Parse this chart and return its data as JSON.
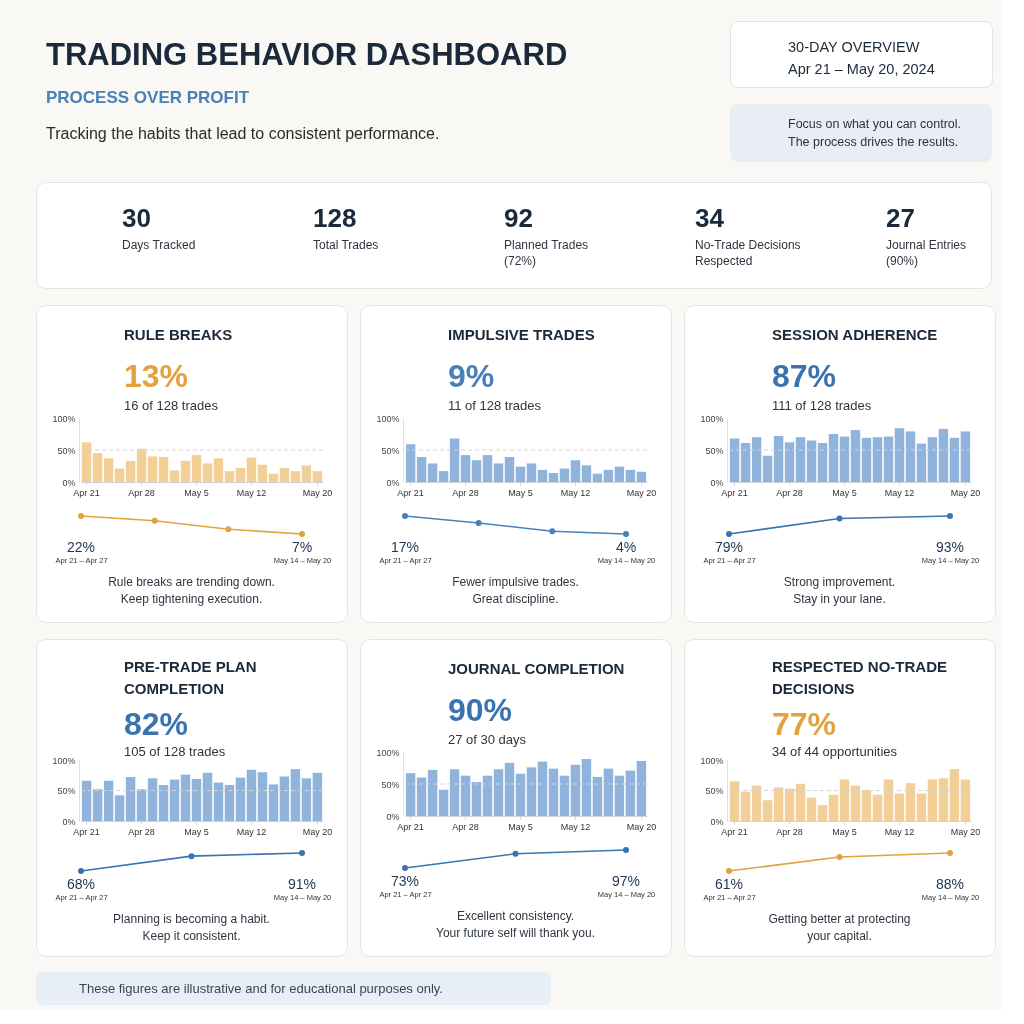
{
  "chart_data": [
    {
      "type": "other",
      "title": "TRADING BEHAVIOR DASHBOARD",
      "subtitle": "PROCESS OVER PROFIT",
      "annotations": [
        "Tracking the habits that lead to consistent performance."
      ]
    },
    {
      "type": "other",
      "title": "30-DAY OVERVIEW",
      "subtitle": "Apr 21 – May 20, 2024"
    },
    {
      "type": "other",
      "annotations": [
        "Focus on what you can control.",
        "The process drives the results."
      ]
    },
    {
      "type": "other",
      "categories": [
        "Days Tracked",
        "Total Trades",
        "Planned Trades (72%)",
        "No-Trade Decisions Respected",
        "Journal Entries (90%)"
      ],
      "values": [
        30,
        128,
        92,
        34,
        27
      ],
      "data_labels": true
    },
    {
      "type": "bar",
      "title": "RULE BREAKS",
      "subtitle": "13%",
      "annotations": [
        "16 of 128 trades"
      ],
      "categories": [
        "Apr 21",
        null,
        null,
        null,
        null,
        "Apr 28",
        null,
        null,
        null,
        null,
        "May 5",
        null,
        null,
        null,
        null,
        "May 12",
        null,
        null,
        null,
        null,
        null,
        "May 20"
      ],
      "values": [
        62,
        45,
        37,
        21,
        33,
        52,
        40,
        39,
        18,
        33,
        42,
        29,
        37,
        17,
        22,
        38,
        27,
        13,
        22,
        17,
        26,
        17
      ],
      "color": "#f2cf96",
      "ylim": [
        0,
        100
      ],
      "yticks": [
        {
          "value": 0,
          "label": "0%"
        },
        {
          "value": 50,
          "label": "50%"
        },
        {
          "value": 100,
          "label": "100%"
        }
      ],
      "ref_lines": [
        {
          "axis": "y",
          "value": 50,
          "line_style": "dashed",
          "color": "#d4d4d4"
        }
      ]
    },
    {
      "type": "line",
      "categories": [
        "Apr 21 – Apr 27",
        null,
        null,
        "May 14 – May 20"
      ],
      "values": [
        22,
        18,
        11,
        7
      ],
      "value_labels": [
        "22%",
        null,
        null,
        "7%"
      ],
      "color": "#e3a23f",
      "marker": "circle",
      "line_style": "solid",
      "tick_labels": "x",
      "annotations": [
        "Rule breaks are trending down.",
        "Keep tightening execution."
      ]
    },
    {
      "type": "bar",
      "title": "IMPULSIVE TRADES",
      "subtitle": "9%",
      "annotations": [
        "11 of 128 trades"
      ],
      "categories": [
        "Apr 21",
        null,
        null,
        null,
        null,
        "Apr 28",
        null,
        null,
        null,
        null,
        "May 5",
        null,
        null,
        null,
        null,
        "May 12",
        null,
        null,
        null,
        null,
        null,
        "May 20"
      ],
      "values": [
        59,
        39,
        29,
        17,
        68,
        42,
        34,
        42,
        29,
        39,
        24,
        29,
        19,
        14,
        21,
        34,
        26,
        13,
        19,
        24,
        19,
        16
      ],
      "color": "#8fb3da",
      "ylim": [
        0,
        100
      ],
      "yticks": [
        {
          "value": 0,
          "label": "0%"
        },
        {
          "value": 50,
          "label": "50%"
        },
        {
          "value": 100,
          "label": "100%"
        }
      ],
      "ref_lines": [
        {
          "axis": "y",
          "value": 50,
          "line_style": "dashed",
          "color": "#d4d4d4"
        }
      ]
    },
    {
      "type": "line",
      "categories": [
        "Apr 21 – Apr 27",
        null,
        null,
        "May 14 – May 20"
      ],
      "values": [
        17,
        12,
        6,
        4
      ],
      "value_labels": [
        "17%",
        null,
        null,
        "4%"
      ],
      "color": "#4a80ba",
      "marker": "circle",
      "line_style": "solid",
      "tick_labels": "x",
      "annotations": [
        "Fewer impulsive trades.",
        "Great discipline."
      ]
    },
    {
      "type": "bar",
      "title": "SESSION ADHERENCE",
      "subtitle": "87%",
      "annotations": [
        "111 of 128 trades"
      ],
      "categories": [
        "Apr 21",
        null,
        null,
        null,
        null,
        "Apr 28",
        null,
        null,
        null,
        null,
        "May 5",
        null,
        null,
        null,
        null,
        "May 12",
        null,
        null,
        null,
        null,
        null,
        "May 20"
      ],
      "values": [
        68,
        61,
        70,
        41,
        72,
        62,
        70,
        65,
        61,
        75,
        71,
        81,
        69,
        70,
        71,
        84,
        79,
        60,
        70,
        83,
        69,
        79
      ],
      "color": "#8fb3da",
      "ylim": [
        0,
        100
      ],
      "yticks": [
        {
          "value": 0,
          "label": "0%"
        },
        {
          "value": 50,
          "label": "50%"
        },
        {
          "value": 100,
          "label": "100%"
        }
      ],
      "ref_lines": [
        {
          "axis": "y",
          "value": 50,
          "line_style": "dashed",
          "color": "#d4d4d4"
        }
      ]
    },
    {
      "type": "line",
      "categories": [
        "Apr 21 – Apr 27",
        null,
        "May 14 – May 20"
      ],
      "values": [
        79,
        91,
        93
      ],
      "value_labels": [
        "79%",
        null,
        "93%"
      ],
      "color": "#3a74b0",
      "marker": "circle",
      "line_style": "solid",
      "tick_labels": "x",
      "annotations": [
        "Strong improvement.",
        "Stay in your lane."
      ]
    },
    {
      "type": "bar",
      "title": "PRE-TRADE PLAN COMPLETION",
      "subtitle": "82%",
      "annotations": [
        "105 of 128 trades"
      ],
      "categories": [
        "Apr 21",
        null,
        null,
        null,
        null,
        "Apr 28",
        null,
        null,
        null,
        null,
        "May 5",
        null,
        null,
        null,
        null,
        "May 12",
        null,
        null,
        null,
        null,
        null,
        "May 20"
      ],
      "values": [
        66,
        52,
        66,
        42,
        72,
        52,
        70,
        59,
        68,
        76,
        69,
        79,
        63,
        59,
        71,
        84,
        80,
        60,
        73,
        85,
        70,
        79
      ],
      "color": "#8fb3da",
      "ylim": [
        0,
        100
      ],
      "yticks": [
        {
          "value": 0,
          "label": "0%"
        },
        {
          "value": 50,
          "label": "50%"
        },
        {
          "value": 100,
          "label": "100%"
        }
      ],
      "ref_lines": [
        {
          "axis": "y",
          "value": 50,
          "line_style": "dashed",
          "color": "#d4d4d4"
        }
      ]
    },
    {
      "type": "line",
      "categories": [
        "Apr 21 – Apr 27",
        null,
        "May 14 – May 20"
      ],
      "values": [
        68,
        87,
        91
      ],
      "value_labels": [
        "68%",
        null,
        "91%"
      ],
      "color": "#3a74b0",
      "marker": "circle",
      "line_style": "solid",
      "tick_labels": "x",
      "annotations": [
        "Planning is becoming a habit.",
        "Keep it consistent."
      ]
    },
    {
      "type": "bar",
      "title": "JOURNAL COMPLETION",
      "subtitle": "90%",
      "annotations": [
        "27 of 30 days"
      ],
      "categories": [
        "Apr 21",
        null,
        null,
        null,
        null,
        "Apr 28",
        null,
        null,
        null,
        null,
        "May 5",
        null,
        null,
        null,
        null,
        "May 12",
        null,
        null,
        null,
        null,
        null,
        "May 20"
      ],
      "values": [
        67,
        60,
        72,
        41,
        73,
        63,
        53,
        63,
        73,
        83,
        66,
        76,
        85,
        74,
        63,
        80,
        89,
        61,
        74,
        63,
        71,
        86
      ],
      "color": "#8fb3da",
      "ylim": [
        0,
        100
      ],
      "yticks": [
        {
          "value": 0,
          "label": "0%"
        },
        {
          "value": 50,
          "label": "50%"
        },
        {
          "value": 100,
          "label": "100%"
        }
      ],
      "ref_lines": [
        {
          "axis": "y",
          "value": 50,
          "line_style": "dashed",
          "color": "#d4d4d4"
        }
      ]
    },
    {
      "type": "line",
      "categories": [
        "Apr 21 – Apr 27",
        null,
        "May 14 – May 20"
      ],
      "values": [
        73,
        92,
        97
      ],
      "value_labels": [
        "73%",
        null,
        "97%"
      ],
      "color": "#3a74b0",
      "marker": "circle",
      "line_style": "solid",
      "tick_labels": "x",
      "annotations": [
        "Excellent consistency.",
        "Your future self will thank you."
      ]
    },
    {
      "type": "bar",
      "title": "RESPECTED NO-TRADE DECISIONS",
      "subtitle": "77%",
      "annotations": [
        "34 of 44 opportunities"
      ],
      "categories": [
        "Apr 21",
        null,
        null,
        null,
        null,
        "Apr 28",
        null,
        null,
        null,
        null,
        "May 5",
        null,
        null,
        null,
        null,
        "May 12",
        null,
        null,
        null,
        null,
        null,
        "May 20"
      ],
      "values": [
        65,
        48,
        58,
        34,
        55,
        53,
        61,
        38,
        26,
        43,
        68,
        58,
        51,
        43,
        68,
        45,
        62,
        45,
        68,
        70,
        85,
        68
      ],
      "color": "#f2cf96",
      "ylim": [
        0,
        100
      ],
      "yticks": [
        {
          "value": 0,
          "label": "0%"
        },
        {
          "value": 50,
          "label": "50%"
        },
        {
          "value": 100,
          "label": "100%"
        }
      ],
      "ref_lines": [
        {
          "axis": "y",
          "value": 50,
          "line_style": "dashed",
          "color": "#d4d4d4"
        }
      ]
    },
    {
      "type": "line",
      "categories": [
        "Apr 21 – Apr 27",
        null,
        "May 14 – May 20"
      ],
      "values": [
        61,
        82,
        88
      ],
      "value_labels": [
        "61%",
        null,
        "88%"
      ],
      "color": "#e0a33f",
      "marker": "circle",
      "line_style": "solid",
      "tick_labels": "x",
      "annotations": [
        "Getting better at protecting",
        "your capital."
      ]
    },
    {
      "type": "other",
      "annotations": [
        "These figures are illustrative and for educational purposes only."
      ]
    }
  ]
}
